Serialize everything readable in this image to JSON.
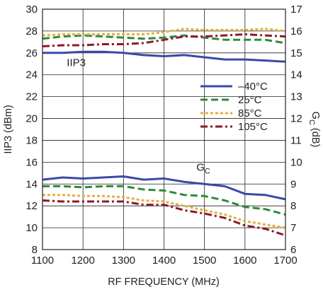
{
  "chart_data": {
    "type": "line",
    "xlabel": "RF FREQUENCY (MHz)",
    "ylabel_left": "IIP3 (dBm)",
    "ylabel_right": {
      "main": "G",
      "sub": "C",
      "unit": " (dB)"
    },
    "xlim": [
      1100,
      1700
    ],
    "ylim_left": [
      8,
      30
    ],
    "ylim_right": [
      6,
      17
    ],
    "x_ticks": [
      1100,
      1200,
      1300,
      1400,
      1500,
      1600,
      1700
    ],
    "y_left_ticks": [
      8,
      10,
      12,
      14,
      16,
      18,
      20,
      22,
      24,
      26,
      28,
      30
    ],
    "y_right_ticks": [
      6,
      7,
      8,
      9,
      10,
      11,
      12,
      13,
      14,
      15,
      16,
      17
    ],
    "grid": true,
    "legend": {
      "position": "center-right",
      "entries": [
        {
          "label": "–40°C",
          "color": "#3a4aa6",
          "dash": "solid"
        },
        {
          "label": "25°C",
          "color": "#2f8a3a",
          "dash": "dashed"
        },
        {
          "label": "85°C",
          "color": "#e2b23c",
          "dash": "dotted"
        },
        {
          "label": "105°C",
          "color": "#8b1a2a",
          "dash": "dashdot"
        }
      ]
    },
    "annotations": [
      {
        "text": "IIP3",
        "sub": "",
        "x": 1160,
        "y": 24.8
      },
      {
        "text": "G",
        "sub": "C",
        "x": 1480,
        "y": 15.2
      }
    ],
    "x": [
      1100,
      1150,
      1200,
      1250,
      1300,
      1350,
      1400,
      1450,
      1500,
      1550,
      1600,
      1650,
      1700
    ],
    "groups": [
      {
        "quantity": "IIP3",
        "axis": "left",
        "series": [
          {
            "name": "–40°C",
            "values": [
              26.0,
              26.0,
              26.1,
              26.1,
              26.0,
              25.8,
              25.7,
              25.8,
              25.6,
              25.4,
              25.4,
              25.3,
              25.2
            ]
          },
          {
            "name": "25°C",
            "values": [
              27.3,
              27.5,
              27.6,
              27.5,
              27.4,
              27.3,
              27.4,
              27.6,
              27.4,
              27.2,
              27.2,
              27.2,
              26.9
            ]
          },
          {
            "name": "85°C",
            "values": [
              27.6,
              27.7,
              27.7,
              27.7,
              27.7,
              27.7,
              27.9,
              28.2,
              28.1,
              28.1,
              28.1,
              28.2,
              28.0
            ]
          },
          {
            "name": "105°C",
            "values": [
              26.6,
              26.7,
              26.7,
              26.8,
              26.8,
              26.9,
              27.2,
              27.5,
              27.5,
              27.6,
              27.7,
              27.6,
              27.5
            ]
          }
        ]
      },
      {
        "quantity": "GC",
        "axis": "right",
        "series": [
          {
            "name": "–40°C",
            "values": [
              9.2,
              9.3,
              9.25,
              9.3,
              9.35,
              9.2,
              9.25,
              9.1,
              9.0,
              8.9,
              8.55,
              8.5,
              8.3
            ]
          },
          {
            "name": "25°C",
            "values": [
              8.9,
              8.9,
              8.85,
              8.9,
              8.9,
              8.75,
              8.7,
              8.5,
              8.45,
              8.25,
              7.95,
              7.85,
              7.6
            ]
          },
          {
            "name": "85°C",
            "values": [
              8.5,
              8.5,
              8.45,
              8.45,
              8.4,
              8.25,
              8.2,
              8.0,
              7.8,
              7.6,
              7.3,
              7.15,
              7.0
            ]
          },
          {
            "name": "105°C",
            "values": [
              8.25,
              8.2,
              8.2,
              8.2,
              8.2,
              8.05,
              8.05,
              7.8,
              7.65,
              7.45,
              7.1,
              6.95,
              6.65
            ]
          }
        ]
      }
    ]
  }
}
